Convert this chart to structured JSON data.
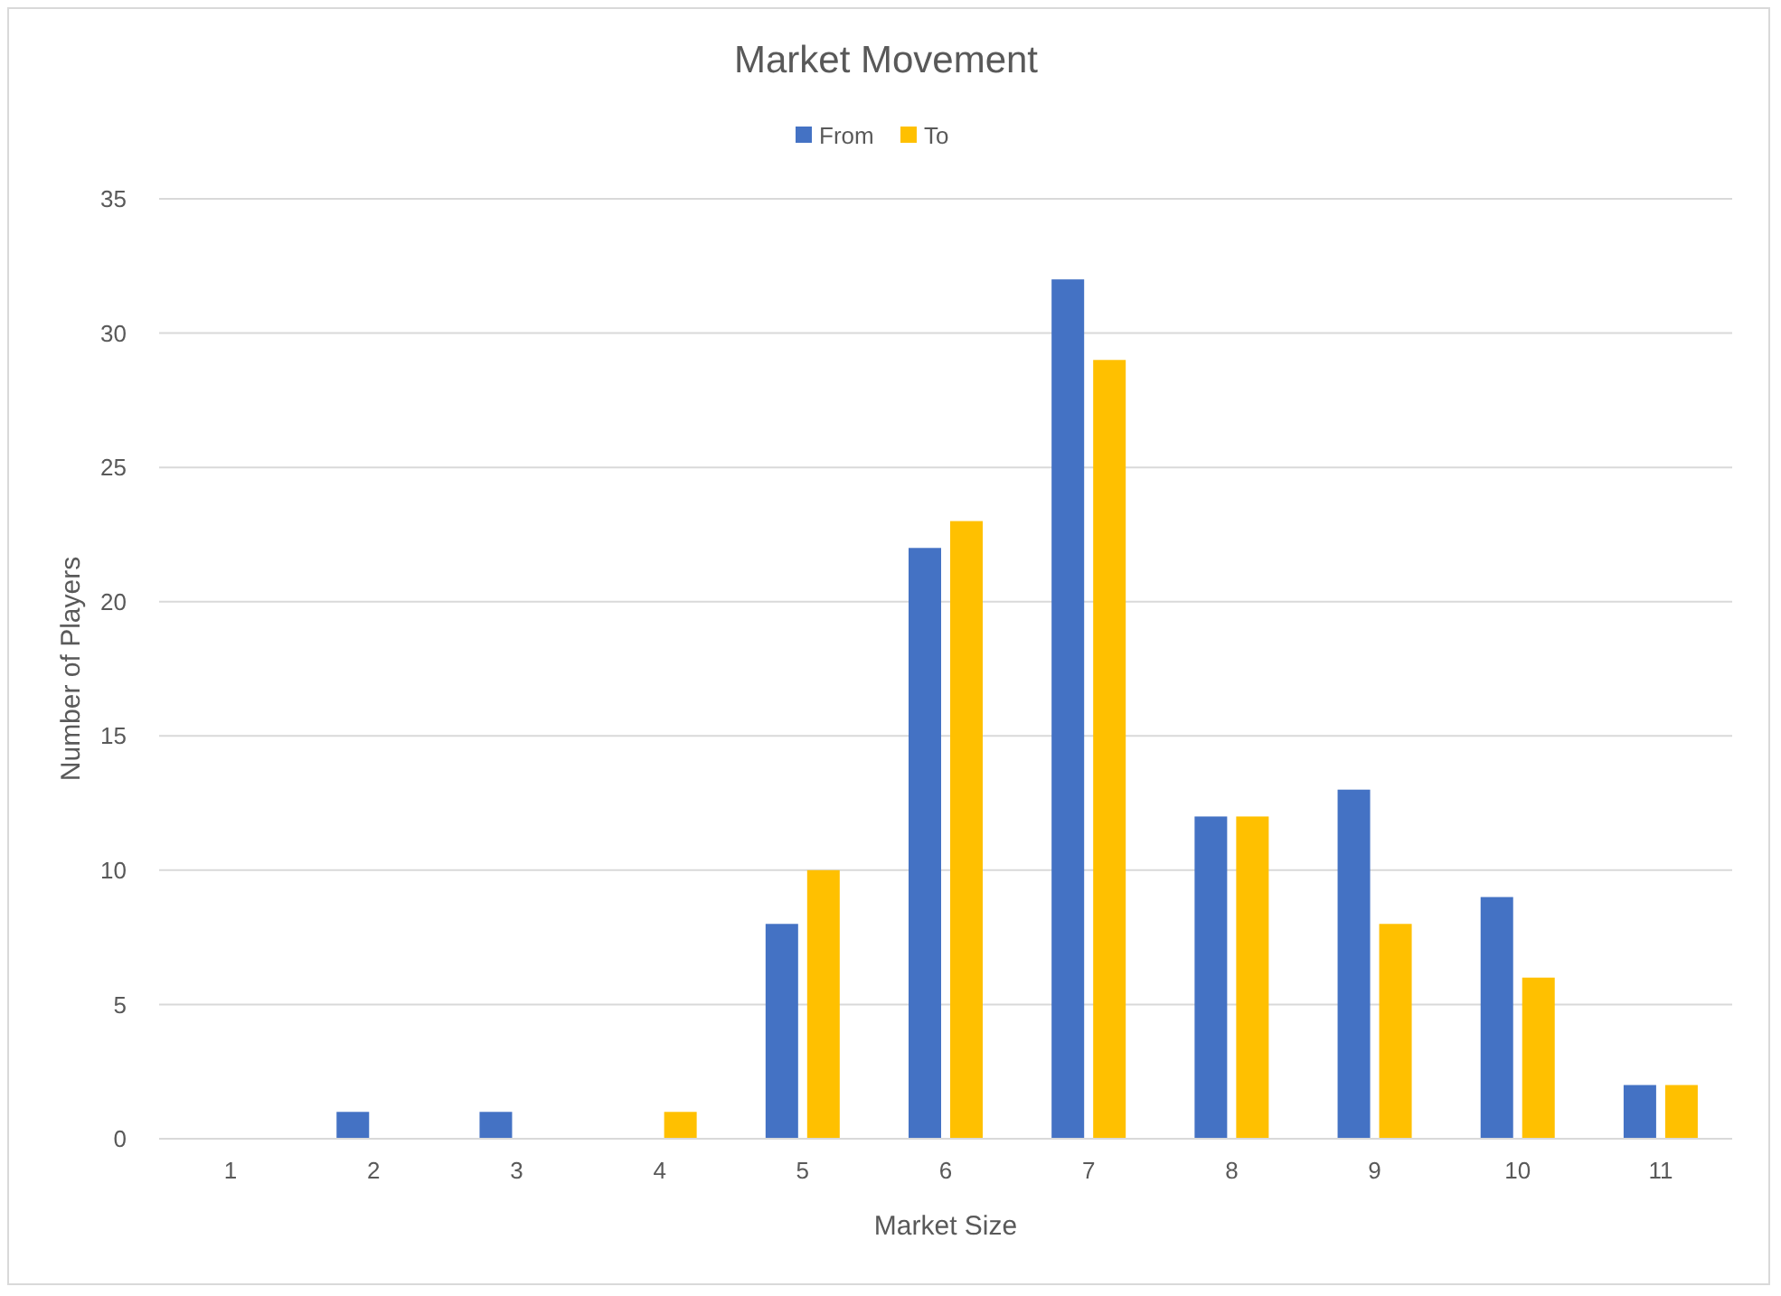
{
  "chart_data": {
    "type": "bar",
    "title": "Market Movement",
    "xlabel": "Market Size",
    "ylabel": "Number of Players",
    "categories": [
      "1",
      "2",
      "3",
      "4",
      "5",
      "6",
      "7",
      "8",
      "9",
      "10",
      "11"
    ],
    "series": [
      {
        "name": "From",
        "color": "#4472c4",
        "values": [
          0,
          1,
          1,
          0,
          8,
          22,
          32,
          12,
          13,
          9,
          2
        ]
      },
      {
        "name": "To",
        "color": "#ffc000",
        "values": [
          0,
          0,
          0,
          1,
          10,
          23,
          29,
          12,
          8,
          6,
          2
        ]
      }
    ],
    "ylim": [
      0,
      35
    ],
    "yticks": [
      0,
      5,
      10,
      15,
      20,
      25,
      30,
      35
    ],
    "grid": "y",
    "legend": "top"
  }
}
